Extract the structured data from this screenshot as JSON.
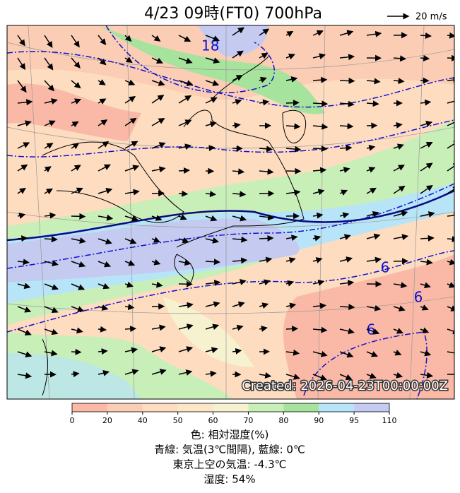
{
  "header": {
    "title": "4/23  09時(FT0)    700hPa",
    "scale": "20 m/s"
  },
  "map": {
    "created": "Created: 2026-04-23T00:00:00Z",
    "contour_labels": [
      "18",
      "6",
      "6",
      "6"
    ]
  },
  "colorbar": {
    "ticks": [
      0,
      20,
      40,
      50,
      60,
      70,
      80,
      90,
      95,
      110
    ],
    "colors": [
      "#f9b9a6",
      "#fbcdb4",
      "#fddcc0",
      "#fde6c6",
      "#f6f1cf",
      "#c9efb8",
      "#a6e39c",
      "#b8e4f7",
      "#c4caf0"
    ]
  },
  "caption": [
    "色: 相対湿度(%)",
    "青線: 気温(3℃間隔), 藍線: 0℃",
    "東京上空の気温: -4.3℃",
    "湿度: 54%"
  ]
}
